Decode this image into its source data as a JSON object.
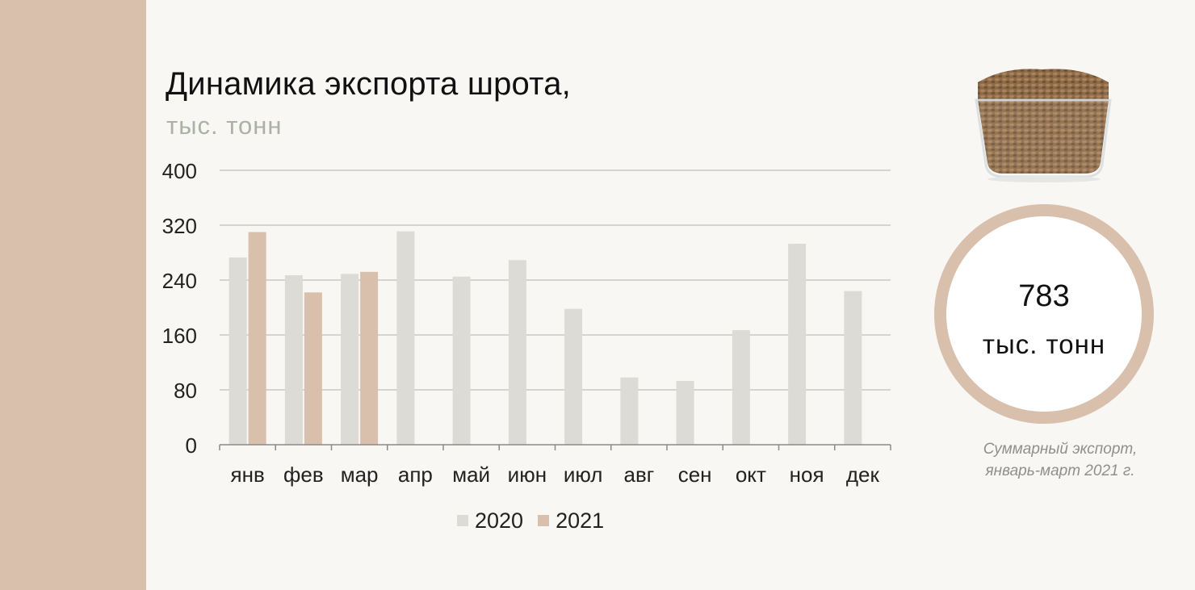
{
  "header": {
    "title": "Динамика экспорта шрота,",
    "subtitle": "тыс. тонн"
  },
  "colors": {
    "sidebar": "#d8c0ad",
    "series_2020": "#dddbd6",
    "series_2021": "#d8c0ad",
    "grid": "#c8c8c8"
  },
  "chart_data": {
    "type": "bar",
    "categories": [
      "янв",
      "фев",
      "мар",
      "апр",
      "май",
      "июн",
      "июл",
      "авг",
      "сен",
      "окт",
      "ноя",
      "дек"
    ],
    "series": [
      {
        "name": "2020",
        "values": [
          273,
          247,
          249,
          311,
          245,
          269,
          198,
          98,
          93,
          167,
          293,
          224
        ]
      },
      {
        "name": "2021",
        "values": [
          310,
          222,
          252,
          null,
          null,
          null,
          null,
          null,
          null,
          null,
          null,
          null
        ]
      }
    ],
    "ylim": [
      0,
      400
    ],
    "yticks": [
      0,
      80,
      160,
      240,
      320,
      400
    ],
    "grid": true,
    "legend": "bottom"
  },
  "summary": {
    "icon": "meal-pellets-bowl-icon",
    "value": "783",
    "unit": "тыс. тонн",
    "caption_line1": "Суммарный экспорт,",
    "caption_line2": "январь-март 2021 г."
  }
}
